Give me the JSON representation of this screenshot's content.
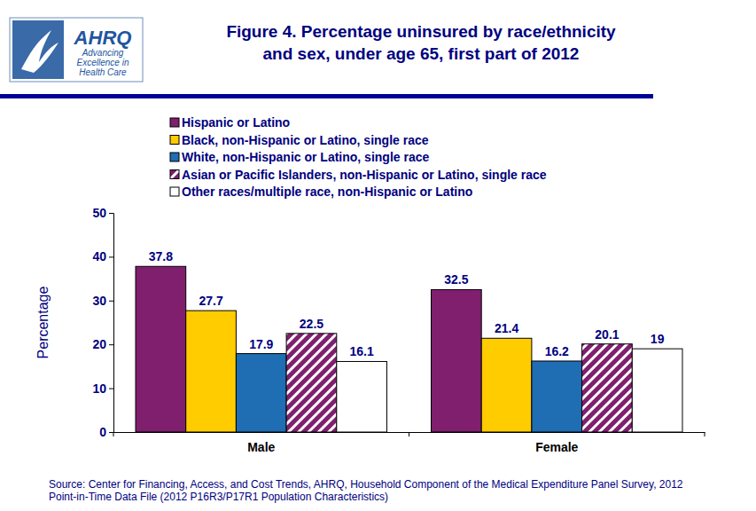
{
  "chart_data": {
    "type": "bar",
    "title": [
      "Figure 4. Percentage uninsured by race/ethnicity",
      "and sex, under age 65, first part of 2012"
    ],
    "logo_text": [
      "AHRQ",
      "Advancing",
      "Excellence in",
      "Health Care"
    ],
    "y_label": "Percentage",
    "source": [
      "Source: Center for Financing, Access, and Cost Trends, AHRQ, Household Component of the Medical Expenditure Panel Survey,  2012",
      "Point-in-Time Data File (2012 P16R3/P17R1 Population Characteristics)"
    ],
    "categories": [
      "Male",
      "Female"
    ],
    "series": [
      {
        "name": "Hispanic or Latino",
        "color": "#7f1f6e",
        "values": [
          37.8,
          32.5
        ]
      },
      {
        "name": "Black, non-Hispanic or Latino, single race",
        "color": "#ffcc00",
        "values": [
          27.7,
          21.4
        ]
      },
      {
        "name": "White, non-Hispanic or Latino, single race",
        "color": "#1f6db3",
        "values": [
          17.9,
          16.2
        ]
      },
      {
        "name": "Asian or Pacific Islanders, non-Hispanic or Latino, single race",
        "color": "#7f1f6e",
        "marker": "hatch",
        "values": [
          22.5,
          20.1
        ]
      },
      {
        "name": "Other races/multiple race, non-Hispanic or Latino",
        "color": "#ffffff",
        "values": [
          16.1,
          19.0
        ]
      }
    ],
    "ylim": [
      0,
      50
    ],
    "yticks": [
      0,
      10,
      20,
      30,
      40,
      50
    ],
    "grid": false,
    "legend": "top-left",
    "data_labels": true
  }
}
